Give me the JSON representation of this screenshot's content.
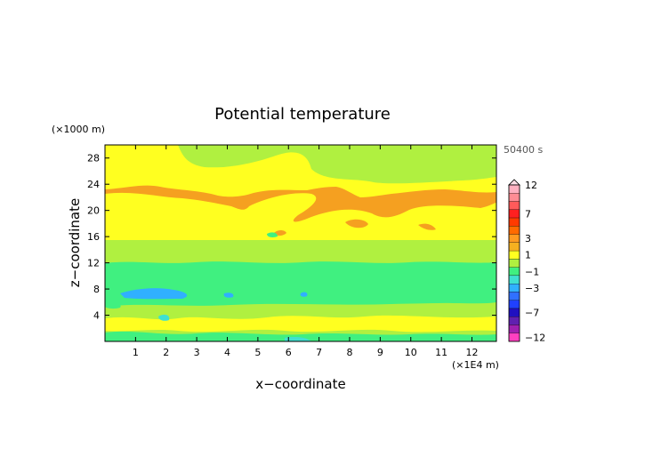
{
  "chart_data": {
    "type": "heatmap",
    "title": "Potential temperature",
    "xlabel": "x−coordinate",
    "ylabel": "z−coordinate",
    "x_unit": "(×1E4 m)",
    "y_unit": "(×1000 m)",
    "time_label": "50400 s",
    "xlim": [
      0,
      12.8
    ],
    "ylim": [
      0,
      30
    ],
    "x_ticks": [
      {
        "value": 1,
        "label": "1"
      },
      {
        "value": 2,
        "label": "2"
      },
      {
        "value": 3,
        "label": "3"
      },
      {
        "value": 4,
        "label": "4"
      },
      {
        "value": 5,
        "label": "5"
      },
      {
        "value": 6,
        "label": "6"
      },
      {
        "value": 7,
        "label": "7"
      },
      {
        "value": 8,
        "label": "8"
      },
      {
        "value": 9,
        "label": "9"
      },
      {
        "value": 10,
        "label": "10"
      },
      {
        "value": 11,
        "label": "11"
      },
      {
        "value": 12,
        "label": "12"
      }
    ],
    "y_ticks": [
      {
        "value": 4,
        "label": "4"
      },
      {
        "value": 8,
        "label": "8"
      },
      {
        "value": 12,
        "label": "12"
      },
      {
        "value": 16,
        "label": "16"
      },
      {
        "value": 20,
        "label": "20"
      },
      {
        "value": 24,
        "label": "24"
      },
      {
        "value": 28,
        "label": "28"
      }
    ],
    "colorbar": {
      "levels": [
        {
          "label": "12",
          "color": "#ffb0c0"
        },
        {
          "label": "",
          "color": "#ff8c94"
        },
        {
          "label": "",
          "color": "#ff5a5a"
        },
        {
          "label": "7",
          "color": "#ff2020"
        },
        {
          "label": "",
          "color": "#ff3a00"
        },
        {
          "label": "",
          "color": "#ff6a00"
        },
        {
          "label": "3",
          "color": "#ff9a20"
        },
        {
          "label": "",
          "color": "#f5b020"
        },
        {
          "label": "1",
          "color": "#ffff20"
        },
        {
          "label": "",
          "color": "#b0f040"
        },
        {
          "label": "−1",
          "color": "#40f080"
        },
        {
          "label": "",
          "color": "#40e0d0"
        },
        {
          "label": "−3",
          "color": "#30b0ff"
        },
        {
          "label": "",
          "color": "#3070ff"
        },
        {
          "label": "",
          "color": "#2040ff"
        },
        {
          "label": "−7",
          "color": "#2010c0"
        },
        {
          "label": "",
          "color": "#6020b0"
        },
        {
          "label": "",
          "color": "#a020b0"
        },
        {
          "label": "−12",
          "color": "#ff40c0"
        }
      ]
    },
    "layers": [
      {
        "z_bottom": 0,
        "z_top": 1.5,
        "level": "−1"
      },
      {
        "z_bottom": 1.5,
        "z_top": 3,
        "level": "0"
      },
      {
        "z_bottom": 3,
        "z_top": 5,
        "level": "−0.5"
      },
      {
        "z_bottom": 5,
        "z_top": 7.5,
        "level": "0"
      },
      {
        "z_bottom": 7.5,
        "z_top": 12,
        "level": "−1"
      },
      {
        "z_bottom": 12,
        "z_top": 17,
        "level": "1"
      },
      {
        "z_bottom": 17,
        "z_top": 22,
        "level": "2.5"
      },
      {
        "z_bottom": 22,
        "z_top": 26,
        "level": "1"
      },
      {
        "z_bottom": 26,
        "z_top": 30,
        "level": "0"
      }
    ]
  }
}
